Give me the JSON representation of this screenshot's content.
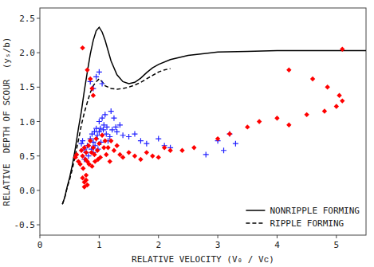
{
  "chart_data": {
    "type": "scatter",
    "xlabel": "RELATIVE VELOCITY (V₀ / Vᴄ)",
    "ylabel": "RELATIVE  DEPTH OF SCOUR  (yₛ/b)",
    "xlim": [
      0,
      5.5
    ],
    "ylim": [
      -0.65,
      2.65
    ],
    "xticks": [
      0,
      1,
      2,
      3,
      4,
      5
    ],
    "yticks": [
      -0.5,
      {
        "value": 0.0,
        "label": "0.0"
      },
      0.5,
      {
        "value": 1.0,
        "label": "1.0"
      },
      1.5,
      {
        "value": 2.0,
        "label": "2.0"
      },
      2.5
    ],
    "grid": false,
    "legend": "lower right",
    "series": [
      {
        "name": "NONRIPPLE FORMING",
        "type": "line",
        "color": "black",
        "line_style": "solid",
        "x": [
          0.38,
          0.42,
          0.46,
          0.5,
          0.55,
          0.6,
          0.65,
          0.7,
          0.75,
          0.8,
          0.85,
          0.9,
          0.95,
          1.0,
          1.05,
          1.1,
          1.2,
          1.3,
          1.4,
          1.5,
          1.6,
          1.7,
          1.8,
          1.9,
          2.0,
          2.2,
          2.5,
          2.8,
          3.0,
          3.5,
          4.0,
          4.5,
          5.0,
          5.5
        ],
        "values": [
          -0.2,
          -0.1,
          0.05,
          0.18,
          0.38,
          0.62,
          0.9,
          1.15,
          1.45,
          1.72,
          1.98,
          2.18,
          2.32,
          2.37,
          2.3,
          2.18,
          1.88,
          1.68,
          1.58,
          1.55,
          1.57,
          1.63,
          1.71,
          1.78,
          1.83,
          1.9,
          1.96,
          1.99,
          2.01,
          2.02,
          2.03,
          2.03,
          2.03,
          2.03
        ]
      },
      {
        "name": "RIPPLE FORMING",
        "type": "line",
        "color": "black",
        "line_style": "dashed",
        "x": [
          0.38,
          0.42,
          0.46,
          0.5,
          0.55,
          0.6,
          0.65,
          0.7,
          0.75,
          0.8,
          0.85,
          0.9,
          0.95,
          1.0,
          1.05,
          1.1,
          1.2,
          1.3,
          1.4,
          1.5,
          1.6,
          1.7,
          1.8,
          1.9,
          2.0,
          2.1,
          2.2
        ],
        "values": [
          -0.2,
          -0.1,
          0.04,
          0.15,
          0.32,
          0.52,
          0.73,
          0.95,
          1.13,
          1.28,
          1.42,
          1.52,
          1.58,
          1.62,
          1.58,
          1.52,
          1.48,
          1.47,
          1.48,
          1.5,
          1.53,
          1.57,
          1.62,
          1.67,
          1.72,
          1.75,
          1.77
        ]
      },
      {
        "type": "scatter",
        "color": "#2222ff",
        "marker": "plus",
        "x": [
          0.7,
          0.72,
          0.75,
          0.75,
          0.78,
          0.8,
          0.82,
          0.85,
          0.87,
          0.88,
          0.9,
          0.9,
          0.92,
          0.93,
          0.95,
          0.95,
          0.97,
          0.98,
          1.0,
          1.0,
          1.02,
          1.03,
          1.05,
          1.07,
          1.08,
          1.1,
          1.12,
          1.13,
          1.15,
          1.18,
          1.2,
          1.22,
          1.25,
          1.28,
          1.3,
          1.35,
          1.4,
          1.5,
          1.6,
          1.7,
          1.8,
          2.0,
          2.1,
          2.2,
          2.8,
          3.0,
          3.1,
          3.2,
          3.3,
          0.85,
          0.9,
          0.95,
          1.0,
          1.05
        ],
        "values": [
          0.68,
          0.72,
          0.6,
          0.45,
          0.55,
          0.65,
          0.5,
          0.75,
          0.6,
          0.82,
          0.7,
          0.55,
          0.85,
          0.65,
          0.9,
          0.75,
          0.8,
          0.6,
          1.0,
          0.85,
          0.9,
          0.7,
          1.05,
          0.88,
          0.95,
          1.1,
          0.82,
          0.92,
          0.72,
          0.78,
          1.15,
          0.88,
          1.05,
          0.92,
          0.85,
          0.95,
          0.8,
          0.78,
          0.82,
          0.72,
          0.68,
          0.75,
          0.65,
          0.62,
          0.52,
          0.72,
          0.58,
          0.82,
          0.68,
          1.58,
          1.48,
          1.65,
          1.72,
          1.55
        ]
      },
      {
        "type": "scatter",
        "color": "#ff0000",
        "marker": "diamond",
        "x": [
          0.6,
          0.62,
          0.65,
          0.68,
          0.7,
          0.72,
          0.73,
          0.75,
          0.77,
          0.78,
          0.8,
          0.82,
          0.83,
          0.85,
          0.87,
          0.88,
          0.9,
          0.92,
          0.93,
          0.95,
          0.97,
          0.98,
          1.0,
          1.02,
          1.05,
          1.08,
          1.1,
          1.12,
          1.15,
          1.18,
          1.2,
          1.25,
          1.3,
          1.35,
          1.4,
          1.5,
          1.6,
          1.7,
          1.8,
          1.9,
          2.0,
          2.1,
          2.2,
          2.4,
          2.6,
          3.0,
          3.2,
          3.5,
          3.7,
          4.0,
          4.2,
          4.5,
          4.8,
          5.0,
          5.1,
          0.72,
          0.75,
          0.78,
          0.8,
          0.75,
          0.78
        ],
        "values": [
          0.48,
          0.52,
          0.42,
          0.38,
          0.58,
          0.5,
          0.32,
          0.62,
          0.45,
          0.55,
          0.42,
          0.65,
          0.38,
          0.72,
          0.55,
          0.35,
          0.62,
          0.52,
          0.42,
          0.75,
          0.58,
          0.45,
          0.68,
          0.48,
          0.8,
          0.62,
          0.72,
          0.52,
          0.62,
          0.42,
          0.72,
          0.58,
          0.65,
          0.52,
          0.48,
          0.55,
          0.5,
          0.45,
          0.55,
          0.5,
          0.48,
          0.62,
          0.58,
          0.58,
          0.62,
          0.75,
          0.82,
          0.92,
          1.0,
          1.05,
          0.95,
          1.1,
          1.15,
          1.22,
          1.3,
          0.18,
          0.12,
          0.22,
          0.08,
          0.05,
          0.15
        ]
      },
      {
        "type": "scatter",
        "color": "#ff0000",
        "marker": "diamond",
        "x": [
          0.72,
          0.8,
          0.85,
          0.88,
          0.9,
          5.1,
          4.2,
          4.6,
          4.85,
          5.05
        ],
        "values": [
          2.07,
          1.75,
          1.62,
          1.48,
          1.38,
          2.05,
          1.75,
          1.62,
          1.5,
          1.38
        ]
      }
    ]
  }
}
